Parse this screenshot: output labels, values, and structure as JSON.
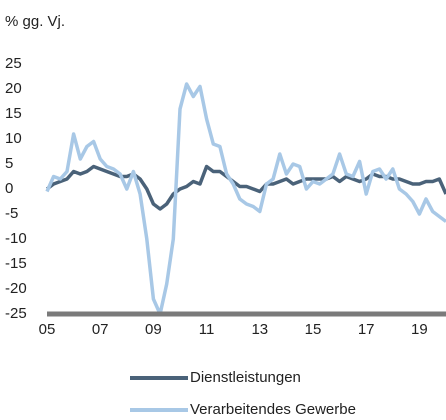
{
  "chart_data": {
    "type": "line",
    "title": "% gg. Vj.",
    "x": [
      2005,
      2005.25,
      2005.5,
      2005.75,
      2006,
      2006.25,
      2006.5,
      2006.75,
      2007,
      2007.25,
      2007.5,
      2007.75,
      2008,
      2008.25,
      2008.5,
      2008.75,
      2009,
      2009.25,
      2009.5,
      2009.75,
      2010,
      2010.25,
      2010.5,
      2010.75,
      2011,
      2011.25,
      2011.5,
      2011.75,
      2012,
      2012.25,
      2012.5,
      2012.75,
      2013,
      2013.25,
      2013.5,
      2013.75,
      2014,
      2014.25,
      2014.5,
      2014.75,
      2015,
      2015.25,
      2015.5,
      2015.75,
      2016,
      2016.25,
      2016.5,
      2016.75,
      2017,
      2017.25,
      2017.5,
      2017.75,
      2018,
      2018.25,
      2018.5,
      2018.75,
      2019,
      2019.25,
      2019.5,
      2019.75,
      2020
    ],
    "series": [
      {
        "name": "Dienstleistungen",
        "color": "#4a6279",
        "values": [
          0,
          1,
          1.5,
          2,
          3.5,
          3,
          3.5,
          4.5,
          4,
          3.5,
          3,
          2.5,
          2.5,
          3,
          2,
          0,
          -3,
          -4,
          -3,
          -1,
          0,
          0.5,
          1.5,
          1,
          4.5,
          3.5,
          3.5,
          2.5,
          1.5,
          0.5,
          0.5,
          0,
          -0.5,
          1,
          1,
          1.5,
          2,
          1,
          1.5,
          2,
          2,
          2,
          2,
          2.5,
          1.5,
          2.5,
          2,
          1.5,
          2,
          3,
          2.5,
          2.5,
          2,
          2,
          1.5,
          1,
          1,
          1.5,
          1.5,
          2,
          -1
        ]
      },
      {
        "name": "Verarbeitendes Gewerbe",
        "color": "#a8c8e6",
        "values": [
          -0.5,
          2.5,
          2,
          3.5,
          11,
          6,
          8.5,
          9.5,
          6,
          4.5,
          4,
          3,
          0,
          3.5,
          -1,
          -10,
          -22,
          -25,
          -19,
          -10,
          16,
          21,
          18.5,
          20.5,
          14,
          9,
          8.5,
          3,
          1,
          -2,
          -3,
          -3.5,
          -4.5,
          1,
          2,
          7,
          3,
          5,
          4.5,
          0,
          1.5,
          1,
          2,
          3,
          7,
          3,
          2.5,
          5.5,
          -1,
          3.5,
          4,
          2,
          4,
          0,
          -1,
          -2.5,
          -5,
          -2,
          -4.5,
          -5.5,
          -6.5
        ]
      }
    ],
    "xlim": [
      2005,
      2020
    ],
    "xticks": [
      {
        "value": 2005,
        "label": "05"
      },
      {
        "value": 2007,
        "label": "07"
      },
      {
        "value": 2009,
        "label": "09"
      },
      {
        "value": 2011,
        "label": "11"
      },
      {
        "value": 2013,
        "label": "13"
      },
      {
        "value": 2015,
        "label": "15"
      },
      {
        "value": 2017,
        "label": "17"
      },
      {
        "value": 2019,
        "label": "19"
      }
    ],
    "ylim": [
      -25,
      25
    ],
    "yticks": [
      -25,
      -20,
      -15,
      -10,
      -5,
      0,
      5,
      10,
      15,
      20,
      25
    ],
    "grid": false
  }
}
